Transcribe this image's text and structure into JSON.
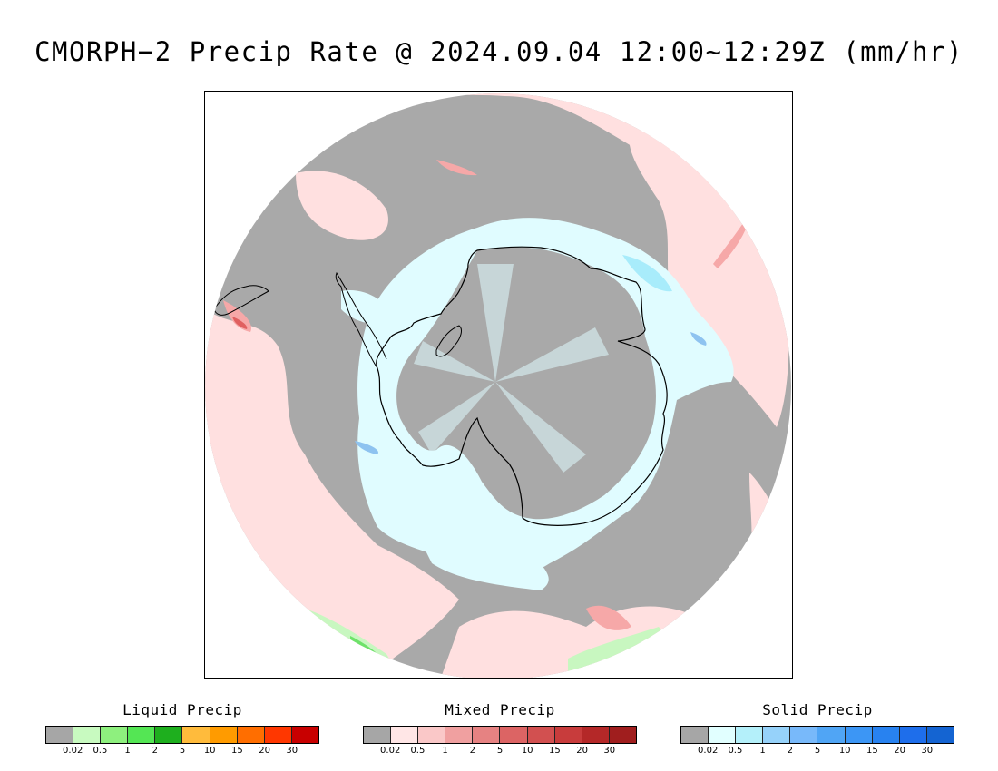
{
  "title": "CMORPH−2 Precip Rate @ 2024.09.04 12:00~12:29Z (mm/hr)",
  "map": {
    "projection": "south polar stereographic",
    "colors": {
      "frame": "#000000",
      "no_precip_gray": "#a9a9a9",
      "mixed_light": "#ffe0e0",
      "mixed_mid": "#f6a8a8",
      "mixed_dark": "#e06060",
      "solid_light": "#e0fcff",
      "solid_mid": "#a8ecfb",
      "solid_blue": "#8ec3f0",
      "liquid_light": "#c8f7c0",
      "liquid_green": "#6ee26a",
      "coastline": "#000000"
    }
  },
  "legends": [
    {
      "title": "Liquid Precip",
      "colors": [
        "#a6a6a6",
        "#c8fac0",
        "#8ef07e",
        "#54e654",
        "#1eaf1e",
        "#ffbb3c",
        "#ff9b00",
        "#ff6e00",
        "#ff3700",
        "#c80000"
      ],
      "ticks": [
        "0.02",
        "0.5",
        "1",
        "2",
        "5",
        "10",
        "15",
        "20",
        "30"
      ]
    },
    {
      "title": "Mixed Precip",
      "colors": [
        "#a6a6a6",
        "#ffe6e6",
        "#fac8c8",
        "#f0a0a0",
        "#e68282",
        "#dc6464",
        "#d25050",
        "#c83c3c",
        "#b42828",
        "#a01e1e"
      ],
      "ticks": [
        "0.02",
        "0.5",
        "1",
        "2",
        "5",
        "10",
        "15",
        "20",
        "30"
      ]
    },
    {
      "title": "Solid Precip",
      "colors": [
        "#a6a6a6",
        "#e1ffff",
        "#b4f0fa",
        "#96d2fa",
        "#78b9fa",
        "#50a5f5",
        "#3c96f5",
        "#2882f0",
        "#1e6eeb",
        "#1464d2"
      ],
      "ticks": [
        "0.02",
        "0.5",
        "1",
        "2",
        "5",
        "10",
        "15",
        "20",
        "30"
      ]
    }
  ]
}
